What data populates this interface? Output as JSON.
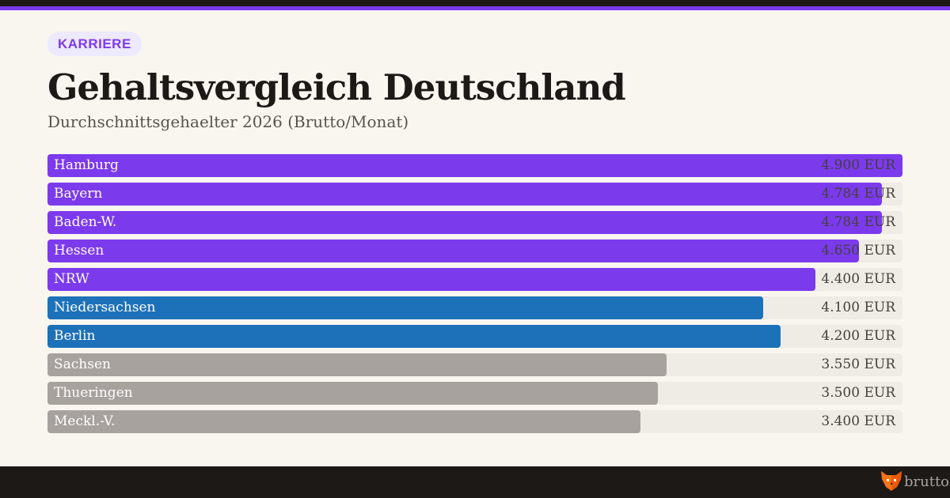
{
  "badge": "KARRIERE",
  "title": "Gehaltsvergleich Deutschland",
  "subtitle": "Durchschnittsgehaelter 2026 (Brutto/Monat)",
  "footer": {
    "brand": "bruttofu"
  },
  "colors": {
    "purple": "#7c3aed",
    "blue": "#1d71b8",
    "gray": "#a8a29e"
  },
  "chart_data": {
    "type": "bar",
    "orientation": "horizontal",
    "unit": "EUR",
    "xlim": [
      0,
      4900
    ],
    "categories": [
      "Hamburg",
      "Bayern",
      "Baden-W.",
      "Hessen",
      "NRW",
      "Niedersachsen",
      "Berlin",
      "Sachsen",
      "Thueringen",
      "Meckl.-V."
    ],
    "values": [
      4900,
      4784,
      4784,
      4650,
      4400,
      4100,
      4200,
      3550,
      3500,
      3400
    ],
    "value_labels": [
      "4.900 EUR",
      "4.784 EUR",
      "4.784 EUR",
      "4.650 EUR",
      "4.400 EUR",
      "4.100 EUR",
      "4.200 EUR",
      "3.550 EUR",
      "3.500 EUR",
      "3.400 EUR"
    ],
    "bar_colors": [
      "purple",
      "purple",
      "purple",
      "purple",
      "purple",
      "blue",
      "blue",
      "gray",
      "gray",
      "gray"
    ]
  }
}
